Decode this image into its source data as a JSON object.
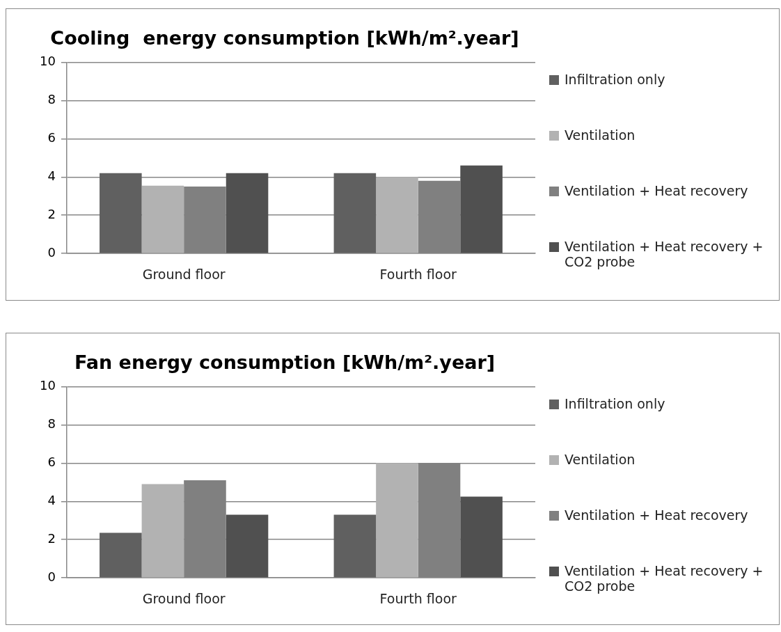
{
  "chart_data": [
    {
      "type": "bar",
      "title": "Cooling  energy consumption [kWh/m².year]",
      "categories": [
        "Ground floor",
        "Fourth floor"
      ],
      "series": [
        {
          "name": "Infiltration only",
          "color": "#606060",
          "values": [
            4.2,
            4.2
          ]
        },
        {
          "name": "Ventilation",
          "color": "#b2b2b2",
          "values": [
            3.55,
            4.0
          ]
        },
        {
          "name": "Ventilation + Heat recovery",
          "color": "#808080",
          "values": [
            3.5,
            3.8
          ]
        },
        {
          "name": "Ventilation + Heat recovery + CO2 probe",
          "color": "#505050",
          "values": [
            4.2,
            4.6
          ]
        }
      ],
      "ylim": [
        0,
        10
      ],
      "yticks": [
        0,
        2,
        4,
        6,
        8,
        10
      ],
      "grid": "y",
      "legend": "right"
    },
    {
      "type": "bar",
      "title": "Fan energy consumption [kWh/m².year]",
      "categories": [
        "Ground floor",
        "Fourth floor"
      ],
      "series": [
        {
          "name": "Infiltration only",
          "color": "#606060",
          "values": [
            2.35,
            3.3
          ]
        },
        {
          "name": "Ventilation",
          "color": "#b2b2b2",
          "values": [
            4.9,
            6.0
          ]
        },
        {
          "name": "Ventilation + Heat recovery",
          "color": "#808080",
          "values": [
            5.1,
            6.0
          ]
        },
        {
          "name": "Ventilation + Heat recovery + CO2 probe",
          "color": "#505050",
          "values": [
            3.3,
            4.25
          ]
        }
      ],
      "ylim": [
        0,
        10
      ],
      "yticks": [
        0,
        2,
        4,
        6,
        8,
        10
      ],
      "grid": "y",
      "legend": "right"
    }
  ]
}
